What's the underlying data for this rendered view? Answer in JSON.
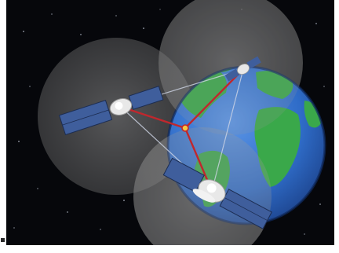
{
  "scene": {
    "subject": "satellites-over-earth",
    "icons": [
      "satellite-icon",
      "earth-globe-icon",
      "ground-receiver-icon"
    ],
    "satellite_count": 3,
    "colors": {
      "space": "#06070b",
      "ocean": "#2f6cc8",
      "land": "#3aa84a",
      "coverage_sphere": "#8a8a8a",
      "signal_line": "#c0272d",
      "solar_panel": "#3f5e9c",
      "satellite_body": "#e8e8e8"
    }
  }
}
